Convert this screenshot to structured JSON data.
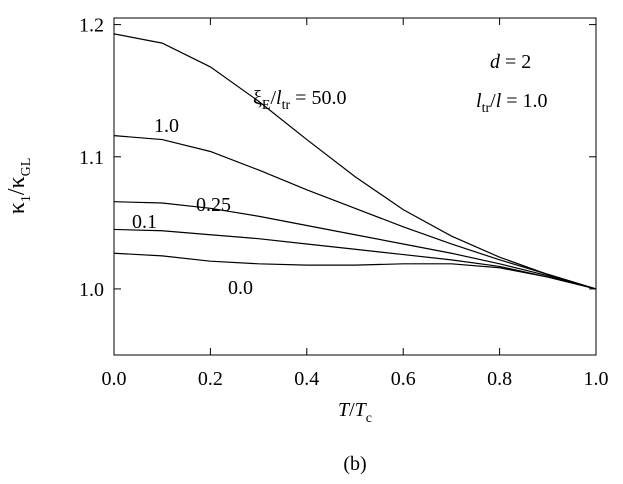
{
  "chart_data": {
    "type": "line",
    "x": [
      0,
      0.1,
      0.2,
      0.3,
      0.4,
      0.5,
      0.6,
      0.7,
      0.8,
      0.9,
      1.0
    ],
    "series": [
      {
        "name": "50.0",
        "color": "#000000",
        "values": [
          1.193,
          1.186,
          1.168,
          1.142,
          1.113,
          1.085,
          1.06,
          1.04,
          1.024,
          1.011,
          1.0
        ]
      },
      {
        "name": "1.0",
        "color": "#000000",
        "values": [
          1.116,
          1.113,
          1.104,
          1.09,
          1.075,
          1.061,
          1.047,
          1.034,
          1.022,
          1.011,
          1.0
        ]
      },
      {
        "name": "0.25",
        "color": "#000000",
        "values": [
          1.066,
          1.065,
          1.061,
          1.055,
          1.048,
          1.041,
          1.034,
          1.027,
          1.019,
          1.01,
          1.0
        ]
      },
      {
        "name": "0.1",
        "color": "#000000",
        "values": [
          1.045,
          1.044,
          1.041,
          1.038,
          1.034,
          1.03,
          1.026,
          1.022,
          1.017,
          1.009,
          1.0
        ]
      },
      {
        "name": "0.0",
        "color": "#000000",
        "values": [
          1.027,
          1.025,
          1.021,
          1.019,
          1.018,
          1.018,
          1.019,
          1.019,
          1.016,
          1.009,
          1.0
        ]
      }
    ],
    "xlim": [
      0,
      1.0
    ],
    "xticks": [
      {
        "value": 0,
        "label": "0.0"
      },
      0.2,
      0.4,
      0.6,
      0.8,
      {
        "value": 1.0,
        "label": "1.0"
      }
    ],
    "ylim": [
      0.95,
      1.205
    ],
    "yticks": [
      {
        "value": 1.0,
        "label": "1.0"
      },
      1.1,
      1.2
    ],
    "y_label": [
      "κ",
      "1",
      "/κ",
      "GL"
    ],
    "x_label": [
      "T",
      "/",
      "T",
      "c"
    ],
    "series_label_prefix": [
      "ξ",
      "E",
      "/",
      "l",
      "tr",
      " = "
    ],
    "annotations": [
      [
        "d",
        " = 2"
      ],
      [
        "l",
        "tr",
        "/",
        "l",
        " = 1.0"
      ]
    ],
    "caption": "(b)"
  }
}
